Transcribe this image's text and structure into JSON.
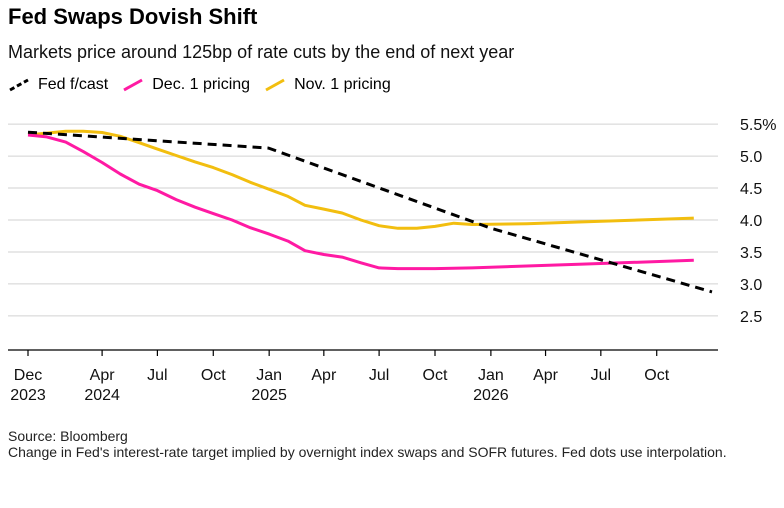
{
  "title": "Fed Swaps Dovish Shift",
  "subtitle": "Markets price around 125bp of rate cuts by the end of next year",
  "source": "Source: Bloomberg",
  "note": "Change in Fed's interest-rate target implied by overnight index swaps and SOFR futures. Fed dots use interpolation.",
  "chart_data": {
    "type": "line",
    "ylim": [
      2.25,
      5.75
    ],
    "yticks": [
      2.5,
      3.0,
      3.5,
      4.0,
      4.5,
      5.0,
      5.5
    ],
    "ytick_labels": [
      "2.5",
      "3.0",
      "3.5",
      "4.0",
      "4.5",
      "5.0",
      "5.5%"
    ],
    "xlim": [
      "2023-12-01",
      "2026-12-31"
    ],
    "xticks": [
      {
        "date": "2023-12-01",
        "line1": "Dec",
        "line2": "2023"
      },
      {
        "date": "2024-04-01",
        "line1": "Apr",
        "line2": "2024"
      },
      {
        "date": "2024-07-01",
        "line1": "Jul",
        "line2": ""
      },
      {
        "date": "2024-10-01",
        "line1": "Oct",
        "line2": ""
      },
      {
        "date": "2025-01-01",
        "line1": "Jan",
        "line2": "2025"
      },
      {
        "date": "2025-04-01",
        "line1": "Apr",
        "line2": ""
      },
      {
        "date": "2025-07-01",
        "line1": "Jul",
        "line2": ""
      },
      {
        "date": "2025-10-01",
        "line1": "Oct",
        "line2": ""
      },
      {
        "date": "2026-01-01",
        "line1": "Jan",
        "line2": "2026"
      },
      {
        "date": "2026-04-01",
        "line1": "Apr",
        "line2": ""
      },
      {
        "date": "2026-07-01",
        "line1": "Jul",
        "line2": ""
      },
      {
        "date": "2026-10-01",
        "line1": "Oct",
        "line2": ""
      }
    ],
    "grid": true,
    "legend_position": "top-left",
    "series": [
      {
        "name": "Fed f/cast",
        "color": "#000000",
        "style": "dashed",
        "points": [
          [
            "2023-12-01",
            5.375
          ],
          [
            "2024-12-31",
            5.125
          ],
          [
            "2025-12-31",
            3.875
          ],
          [
            "2026-12-31",
            2.875
          ]
        ]
      },
      {
        "name": "Dec. 1 pricing",
        "color": "#ff1aa3",
        "style": "solid",
        "points": [
          [
            "2023-12-01",
            5.33
          ],
          [
            "2024-01-01",
            5.3
          ],
          [
            "2024-02-01",
            5.22
          ],
          [
            "2024-03-01",
            5.07
          ],
          [
            "2024-04-01",
            4.9
          ],
          [
            "2024-05-01",
            4.72
          ],
          [
            "2024-06-01",
            4.56
          ],
          [
            "2024-07-01",
            4.46
          ],
          [
            "2024-08-01",
            4.32
          ],
          [
            "2024-09-01",
            4.2
          ],
          [
            "2024-10-01",
            4.1
          ],
          [
            "2024-11-01",
            4.0
          ],
          [
            "2024-12-01",
            3.88
          ],
          [
            "2025-01-01",
            3.78
          ],
          [
            "2025-02-01",
            3.67
          ],
          [
            "2025-03-01",
            3.52
          ],
          [
            "2025-04-01",
            3.46
          ],
          [
            "2025-05-01",
            3.42
          ],
          [
            "2025-06-01",
            3.33
          ],
          [
            "2025-07-01",
            3.25
          ],
          [
            "2025-08-01",
            3.24
          ],
          [
            "2025-10-01",
            3.24
          ],
          [
            "2025-12-01",
            3.25
          ],
          [
            "2026-03-01",
            3.28
          ],
          [
            "2026-06-01",
            3.31
          ],
          [
            "2026-09-01",
            3.34
          ],
          [
            "2026-12-01",
            3.37
          ]
        ]
      },
      {
        "name": "Nov. 1 pricing",
        "color": "#f2be0f",
        "style": "solid",
        "points": [
          [
            "2023-12-01",
            5.33
          ],
          [
            "2024-01-01",
            5.36
          ],
          [
            "2024-02-01",
            5.39
          ],
          [
            "2024-03-01",
            5.39
          ],
          [
            "2024-04-01",
            5.37
          ],
          [
            "2024-05-01",
            5.31
          ],
          [
            "2024-06-01",
            5.21
          ],
          [
            "2024-07-01",
            5.11
          ],
          [
            "2024-08-01",
            5.01
          ],
          [
            "2024-09-01",
            4.91
          ],
          [
            "2024-10-01",
            4.82
          ],
          [
            "2024-11-01",
            4.71
          ],
          [
            "2024-12-01",
            4.59
          ],
          [
            "2025-01-01",
            4.48
          ],
          [
            "2025-02-01",
            4.37
          ],
          [
            "2025-03-01",
            4.23
          ],
          [
            "2025-04-01",
            4.17
          ],
          [
            "2025-05-01",
            4.11
          ],
          [
            "2025-06-01",
            4.0
          ],
          [
            "2025-07-01",
            3.91
          ],
          [
            "2025-08-01",
            3.87
          ],
          [
            "2025-09-01",
            3.87
          ],
          [
            "2025-10-01",
            3.9
          ],
          [
            "2025-11-01",
            3.95
          ],
          [
            "2025-12-01",
            3.93
          ],
          [
            "2026-03-01",
            3.94
          ],
          [
            "2026-06-01",
            3.97
          ],
          [
            "2026-09-01",
            4.0
          ],
          [
            "2026-12-01",
            4.03
          ]
        ]
      }
    ]
  }
}
